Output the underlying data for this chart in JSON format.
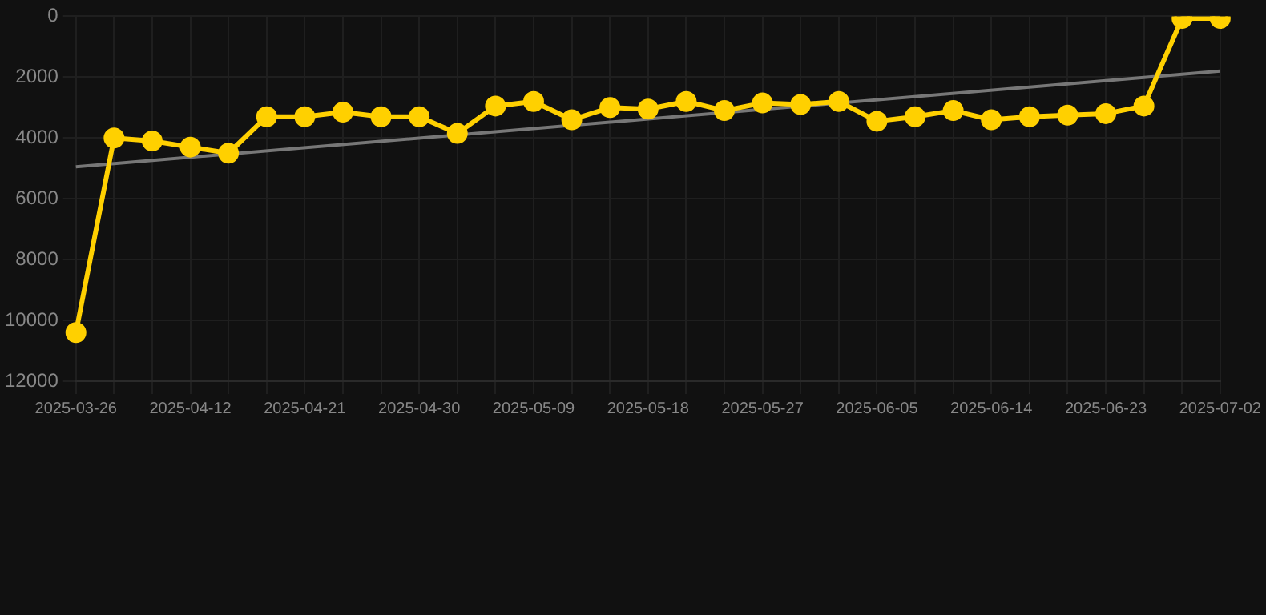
{
  "chart_data": {
    "type": "line",
    "categories": [
      "2025-03-26",
      null,
      null,
      "2025-04-12",
      null,
      null,
      "2025-04-21",
      null,
      null,
      "2025-04-30",
      null,
      null,
      "2025-05-09",
      null,
      null,
      "2025-05-18",
      null,
      null,
      "2025-05-27",
      null,
      null,
      "2025-06-05",
      null,
      null,
      "2025-06-14",
      null,
      null,
      "2025-06-23",
      null,
      null,
      "2025-07-02"
    ],
    "series": [
      {
        "color": "#ffd000",
        "marker": "circle",
        "values": [
          10400,
          4000,
          4100,
          4300,
          4500,
          3300,
          3300,
          3150,
          3300,
          3300,
          3850,
          2950,
          2800,
          3400,
          3000,
          3050,
          2800,
          3100,
          2850,
          2900,
          2800,
          3450,
          3300,
          3100,
          3400,
          3300,
          3250,
          3200,
          2950,
          70,
          70
        ]
      },
      {
        "type": "line",
        "color": "#777777",
        "marker": "none",
        "values": [
          4950,
          null,
          null,
          null,
          null,
          null,
          null,
          null,
          null,
          null,
          null,
          null,
          null,
          null,
          null,
          null,
          null,
          null,
          null,
          null,
          null,
          null,
          null,
          null,
          null,
          null,
          null,
          null,
          null,
          null,
          1800
        ]
      }
    ],
    "ylim": [
      12000,
      0
    ],
    "yticks": [
      0,
      2000,
      4000,
      6000,
      8000,
      10000,
      12000
    ],
    "grid": true,
    "legend": false
  }
}
